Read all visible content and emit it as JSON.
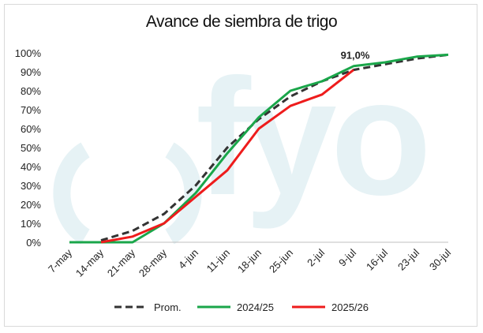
{
  "chart_data": {
    "type": "line",
    "title": "Avance de siembra de trigo",
    "categories": [
      "7-may",
      "14-may",
      "21-may",
      "28-may",
      "4-jun",
      "11-jun",
      "18-jun",
      "25-jun",
      "2-jul",
      "9-jul",
      "16-jul",
      "23-jul",
      "30-jul"
    ],
    "ylim": [
      0,
      100
    ],
    "yticks": [
      "0%",
      "10%",
      "20%",
      "30%",
      "40%",
      "50%",
      "60%",
      "70%",
      "80%",
      "90%",
      "100%"
    ],
    "grid": false,
    "legend_position": "bottom",
    "series": [
      {
        "name": "Prom.",
        "color": "#333333",
        "style": "dashed",
        "values": [
          null,
          1,
          6,
          15,
          30,
          50,
          65,
          77,
          85,
          91,
          94,
          97,
          99
        ]
      },
      {
        "name": "2024/25",
        "color": "#1aa64a",
        "style": "solid",
        "values": [
          0,
          0,
          0,
          10,
          26,
          47,
          66,
          80,
          85,
          93,
          95,
          98,
          99
        ]
      },
      {
        "name": "2025/26",
        "color": "#ee1c1c",
        "style": "solid",
        "values": [
          null,
          0,
          3,
          10,
          24,
          38,
          60,
          72,
          78,
          91,
          null,
          null,
          null
        ]
      }
    ],
    "annotations": [
      {
        "text": "91,0%",
        "category": "9-jul",
        "value": 91
      }
    ]
  },
  "watermark": {
    "text": "fyo",
    "color": "#e6f2f5"
  }
}
